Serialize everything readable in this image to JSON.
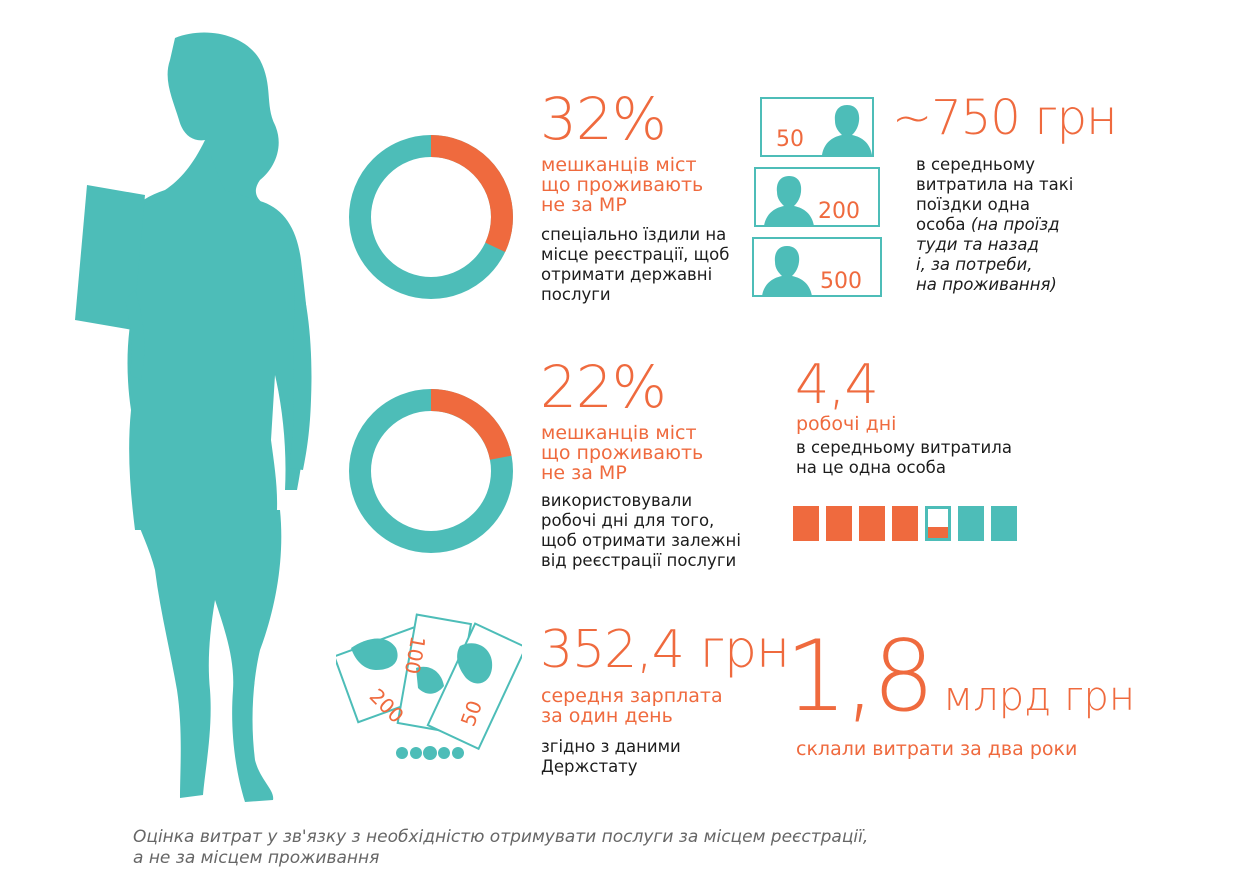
{
  "stat1": {
    "percent": "32%",
    "label": [
      "мешканців міст",
      "що проживають",
      "не за МР"
    ],
    "desc": [
      "спеціально їздили на",
      "місце реєстрації, щоб",
      "отримати державні",
      "послуги"
    ],
    "value": 32
  },
  "stat2": {
    "percent": "22%",
    "label": [
      "мешканців міст",
      "що проживають",
      "не за МР"
    ],
    "desc": [
      "використовували",
      "робочі дні для того,",
      "щоб отримати залежні",
      "від реєстрації послуги"
    ],
    "value": 22
  },
  "travel": {
    "amount": "~750 грн",
    "desc_normal": [
      "в середньому",
      "витратила на такі",
      "поїздки одна",
      "особа"
    ],
    "desc_italic": [
      "(на проїзд",
      "туди та назад",
      "і, за потреби,",
      "на проживання)"
    ],
    "bills": [
      "50",
      "200",
      "500"
    ]
  },
  "days": {
    "value": "4,4",
    "label": "робочі дні",
    "desc": [
      "в середньому витратила",
      "на це одна особа"
    ],
    "filled": 4.4,
    "total": 7
  },
  "salary": {
    "value": "352,4 грн",
    "label": [
      "середня зарплата",
      "за один день"
    ],
    "desc": [
      "згідно з даними",
      "Держстату"
    ],
    "notes": [
      "100",
      "200",
      "50"
    ]
  },
  "total": {
    "value": "1,8",
    "unit": "млрд грн",
    "label": "склали витрати за два роки"
  },
  "caption": [
    "Оцінка витрат у зв'язку з необхідністю отримувати послуги за місцем реєстрації,",
    "а не за місцем проживання"
  ],
  "colors": {
    "orange": "#ef6a3e",
    "teal": "#4dbdb8"
  },
  "icons": [
    "woman-silhouette-icon",
    "person-bust-icon",
    "banknotes-icon",
    "coins-icon"
  ]
}
